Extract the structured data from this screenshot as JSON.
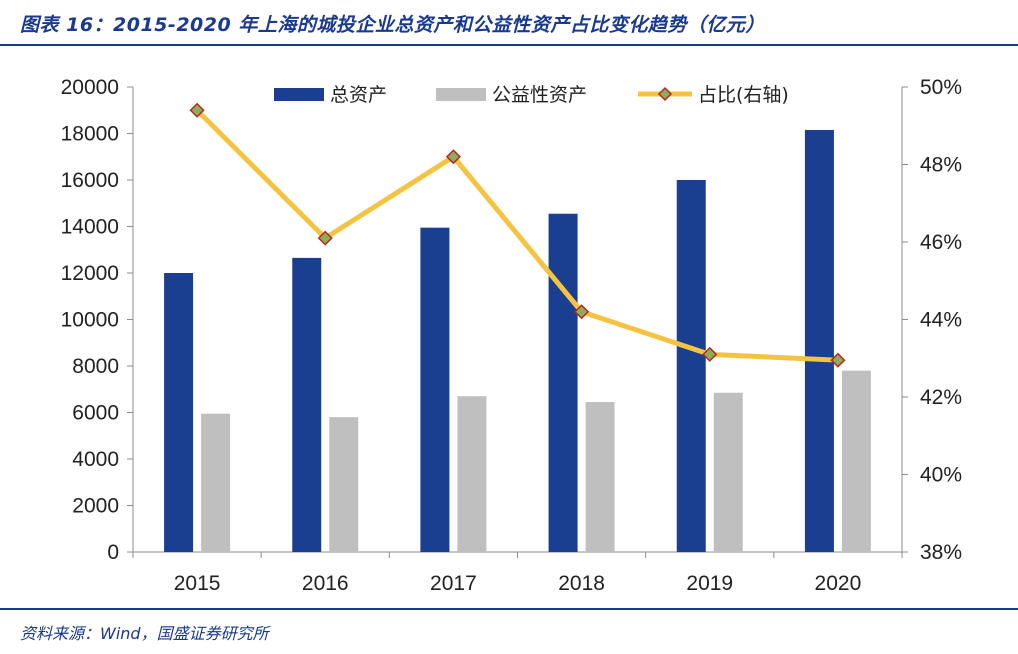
{
  "header": {
    "title": "图表 16：2015-2020 年上海的城投企业总资产和公益性资产占比变化趋势（亿元）"
  },
  "footer": {
    "source": "资料来源：Wind，国盛证券研究所"
  },
  "colors": {
    "total_assets": "#1a3f91",
    "public_assets": "#bfbfbf",
    "ratio_line": "#f5c342",
    "ratio_marker_fill": "#8fac5a",
    "ratio_marker_stroke": "#b5281e",
    "accent": "#1a3a8f"
  },
  "chart_data": {
    "type": "bar",
    "categories": [
      "2015",
      "2016",
      "2017",
      "2018",
      "2019",
      "2020"
    ],
    "series": [
      {
        "name": "总资产",
        "type": "bar",
        "axis": "left",
        "values": [
          12000,
          12650,
          13950,
          14550,
          16000,
          18150
        ]
      },
      {
        "name": "公益性资产",
        "type": "bar",
        "axis": "left",
        "values": [
          5950,
          5800,
          6700,
          6450,
          6850,
          7800
        ]
      },
      {
        "name": "占比(右轴)",
        "type": "line",
        "axis": "right",
        "values": [
          49.4,
          46.1,
          48.2,
          44.2,
          43.1,
          42.95
        ]
      }
    ],
    "y_left": {
      "min": 0,
      "max": 20000,
      "ticks": [
        "0",
        "2000",
        "4000",
        "6000",
        "8000",
        "10000",
        "12000",
        "14000",
        "16000",
        "18000",
        "20000"
      ]
    },
    "y_right": {
      "min": 38,
      "max": 50,
      "ticks": [
        "38%",
        "40%",
        "42%",
        "44%",
        "46%",
        "48%",
        "50%"
      ]
    },
    "legend": {
      "placement": "top-center"
    },
    "grid": false
  }
}
